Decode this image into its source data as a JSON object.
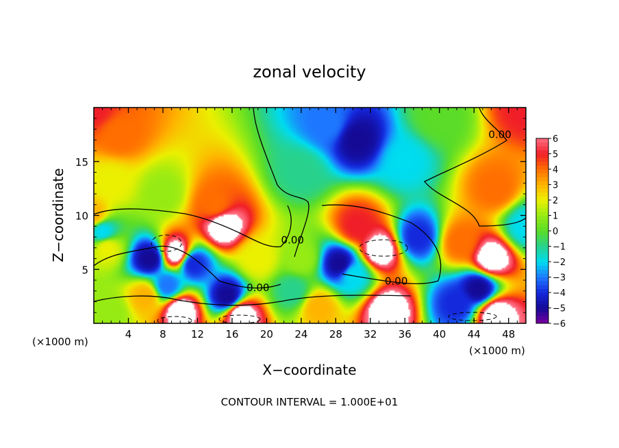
{
  "chart_data": {
    "type": "heatmap",
    "title": "zonal velocity",
    "xlabel": "X−coordinate",
    "ylabel": "Z−coordinate",
    "x_unit_left": "(×1000 m)",
    "x_unit_right": "(×1000 m)",
    "footer": "CONTOUR INTERVAL = 1.000E+01",
    "xlim": [
      0,
      50
    ],
    "ylim": [
      0,
      20
    ],
    "x_ticks": [
      4,
      8,
      12,
      16,
      20,
      24,
      28,
      32,
      36,
      40,
      44,
      48
    ],
    "y_ticks": [
      5,
      10,
      15
    ],
    "colorbar_ticks": [
      6,
      5,
      4,
      3,
      2,
      1,
      0,
      -1,
      -2,
      -3,
      -4,
      -5,
      -6
    ],
    "colorbar_tick_labels": [
      "6",
      "5",
      "4",
      "3",
      "2",
      "1",
      "0",
      "−1",
      "−2",
      "−3",
      "−4",
      "−5",
      "−6"
    ],
    "clim": [
      -6,
      6
    ],
    "contour_labels": [
      {
        "text": "0.00",
        "x": 19.0,
        "y": 3.3
      },
      {
        "text": "0.00",
        "x": 35.0,
        "y": 3.9
      },
      {
        "text": "0.00",
        "x": 23.0,
        "y": 7.7
      },
      {
        "text": "0.00",
        "x": 47.0,
        "y": 17.5
      }
    ],
    "features": [
      {
        "x": 0.0,
        "y": 20.0,
        "value": 5
      },
      {
        "x": 3.0,
        "y": 17.5,
        "value": 4
      },
      {
        "x": 2.0,
        "y": 13.0,
        "value": 2
      },
      {
        "x": 0.0,
        "y": 10.0,
        "value": 3
      },
      {
        "x": 30.5,
        "y": 17.0,
        "value": -5
      },
      {
        "x": 27.0,
        "y": 18.5,
        "value": -3
      },
      {
        "x": 36.0,
        "y": 15.0,
        "value": -2
      },
      {
        "x": 24.0,
        "y": 14.0,
        "value": -1
      },
      {
        "x": 40.0,
        "y": 19.0,
        "value": 0
      },
      {
        "x": 50.0,
        "y": 20.0,
        "value": 5
      },
      {
        "x": 46.5,
        "y": 12.5,
        "value": 4
      },
      {
        "x": 8.0,
        "y": 12.0,
        "value": 1
      },
      {
        "x": 15.0,
        "y": 9.0,
        "value": 7
      },
      {
        "x": 14.0,
        "y": 11.0,
        "value": 4
      },
      {
        "x": 9.5,
        "y": 6.5,
        "value": 7
      },
      {
        "x": 6.5,
        "y": 6.0,
        "value": -5
      },
      {
        "x": 11.5,
        "y": 5.5,
        "value": -4
      },
      {
        "x": 8.5,
        "y": 3.5,
        "value": -3
      },
      {
        "x": 1.0,
        "y": 8.5,
        "value": -2
      },
      {
        "x": 1.5,
        "y": 7.0,
        "value": 2
      },
      {
        "x": 33.0,
        "y": 6.8,
        "value": 7
      },
      {
        "x": 28.5,
        "y": 5.5,
        "value": -5
      },
      {
        "x": 37.5,
        "y": 8.0,
        "value": -4
      },
      {
        "x": 30.5,
        "y": 9.0,
        "value": 5
      },
      {
        "x": 30.0,
        "y": 4.5,
        "value": -2
      },
      {
        "x": 46.0,
        "y": 6.0,
        "value": 7
      },
      {
        "x": 42.5,
        "y": 7.5,
        "value": 4
      },
      {
        "x": 44.5,
        "y": 3.2,
        "value": -5
      },
      {
        "x": 10.0,
        "y": 1.2,
        "value": 7
      },
      {
        "x": 6.0,
        "y": 2.5,
        "value": 3
      },
      {
        "x": 17.0,
        "y": 0.8,
        "value": 7
      },
      {
        "x": 15.5,
        "y": 2.5,
        "value": -5
      },
      {
        "x": 34.0,
        "y": 1.2,
        "value": 7
      },
      {
        "x": 26.0,
        "y": 1.5,
        "value": 3
      },
      {
        "x": 46.5,
        "y": 0.8,
        "value": 7
      },
      {
        "x": 42.0,
        "y": 1.8,
        "value": -4
      },
      {
        "x": 23.0,
        "y": 3.0,
        "value": -1
      },
      {
        "x": 24.0,
        "y": 6.0,
        "value": 1
      },
      {
        "x": 19.0,
        "y": 6.0,
        "value": 2
      },
      {
        "x": 2.0,
        "y": 1.0,
        "value": 1
      },
      {
        "x": 50.0,
        "y": 9.0,
        "value": -2
      }
    ]
  }
}
